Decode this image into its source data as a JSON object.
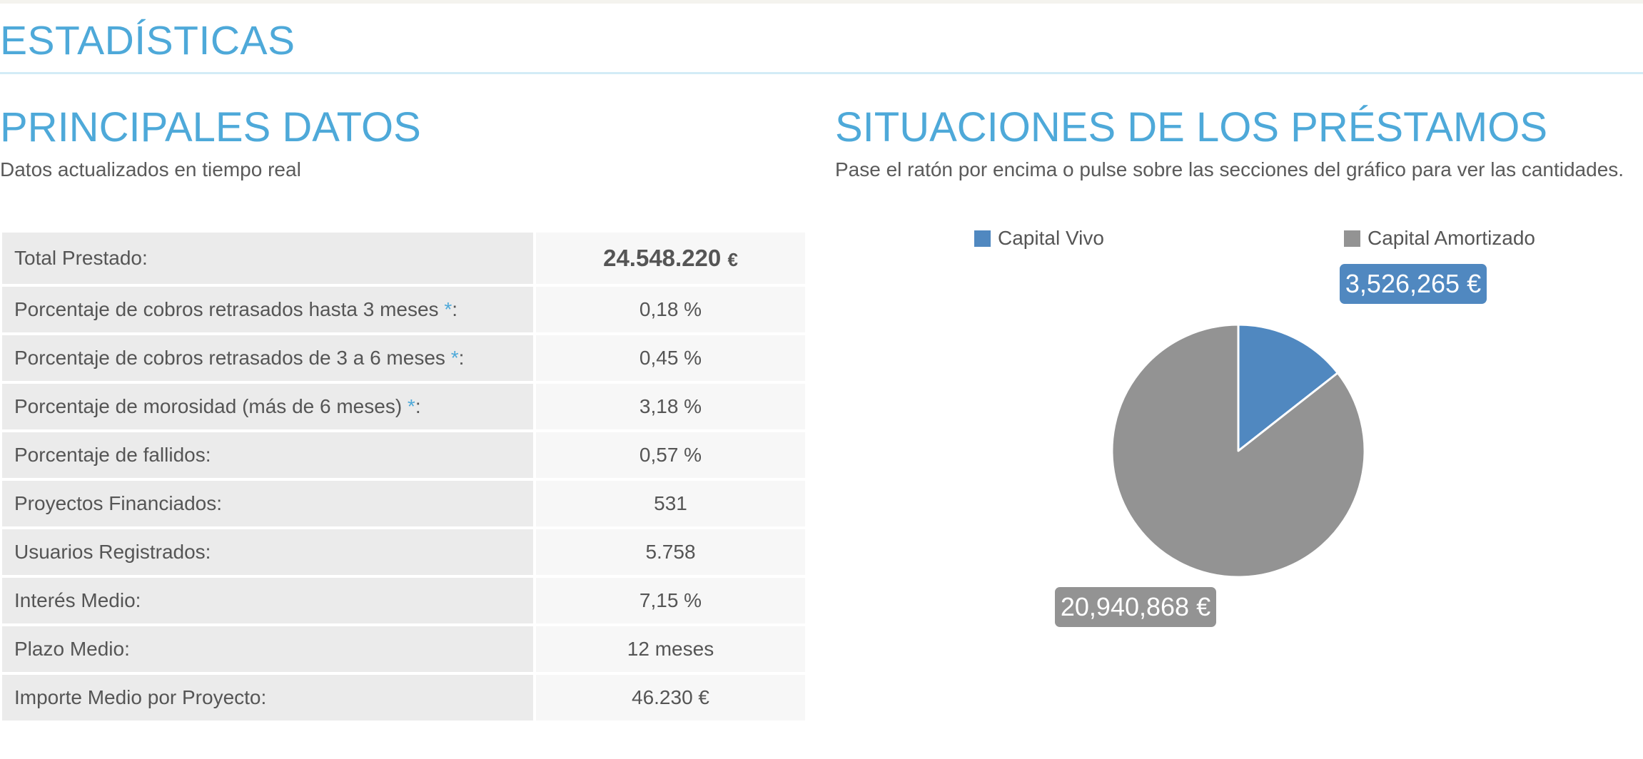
{
  "page": {
    "title": "ESTADÍSTICAS"
  },
  "main_data": {
    "title": "PRINCIPALES DATOS",
    "subtitle": "Datos actualizados en tiempo real",
    "rows": [
      {
        "label": "Total Prestado:",
        "value": "24.548.220",
        "unit": "€"
      },
      {
        "label": "Porcentaje de cobros retrasados hasta 3 meses ",
        "asterisk": "*",
        "suffix": ":",
        "value": "0,18 %"
      },
      {
        "label": "Porcentaje de cobros retrasados de 3 a 6 meses ",
        "asterisk": "*",
        "suffix": ":",
        "value": "0,45 %"
      },
      {
        "label": "Porcentaje de morosidad (más de 6 meses) ",
        "asterisk": "*",
        "suffix": ":",
        "value": "3,18 %"
      },
      {
        "label": "Porcentaje de fallidos:",
        "value": "0,57 %"
      },
      {
        "label": "Proyectos Financiados:",
        "value": "531"
      },
      {
        "label": "Usuarios Registrados:",
        "value": "5.758"
      },
      {
        "label": "Interés Medio:",
        "value": "7,15 %"
      },
      {
        "label": "Plazo Medio:",
        "value": "12 meses"
      },
      {
        "label": "Importe Medio por Proyecto:",
        "value": "46.230 €"
      }
    ]
  },
  "loans": {
    "title": "SITUACIONES DE LOS PRÉSTAMOS",
    "subtitle": "Pase el ratón por encima o pulse sobre las secciones del gráfico para ver las cantidades."
  },
  "colors": {
    "accent": "#4ea9d9",
    "capital_vivo": "#5088c0",
    "capital_amortizado": "#939393"
  },
  "chart_data": {
    "type": "pie",
    "title": "",
    "legend_position": "top",
    "series": [
      {
        "name": "Capital Vivo",
        "value": 3526265,
        "label": "3,526,265 €",
        "color": "#5088c0"
      },
      {
        "name": "Capital Amortizado",
        "value": 20940868,
        "label": "20,940,868 €",
        "color": "#939393"
      }
    ]
  }
}
